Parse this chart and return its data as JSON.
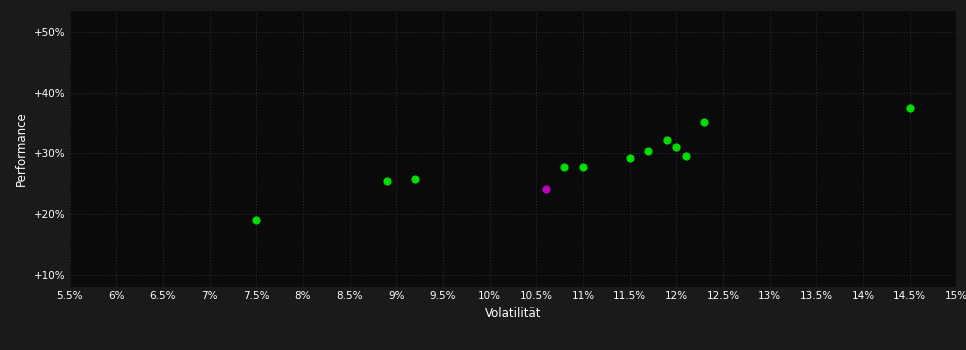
{
  "background_color": "#1a1a1a",
  "plot_bg_color": "#0a0a0a",
  "grid_color": "#2a2a2a",
  "text_color": "#ffffff",
  "xlabel": "Volatilität",
  "ylabel": "Performance",
  "xlim": [
    0.055,
    0.15
  ],
  "ylim": [
    0.08,
    0.535
  ],
  "xticks": [
    0.055,
    0.06,
    0.065,
    0.07,
    0.075,
    0.08,
    0.085,
    0.09,
    0.095,
    0.1,
    0.105,
    0.11,
    0.115,
    0.12,
    0.125,
    0.13,
    0.135,
    0.14,
    0.145,
    0.15
  ],
  "yticks": [
    0.1,
    0.2,
    0.3,
    0.4,
    0.5
  ],
  "green_points": [
    [
      0.075,
      0.19
    ],
    [
      0.089,
      0.255
    ],
    [
      0.092,
      0.258
    ],
    [
      0.108,
      0.278
    ],
    [
      0.11,
      0.278
    ],
    [
      0.115,
      0.293
    ],
    [
      0.117,
      0.303
    ],
    [
      0.119,
      0.322
    ],
    [
      0.121,
      0.295
    ],
    [
      0.12,
      0.31
    ],
    [
      0.123,
      0.352
    ],
    [
      0.145,
      0.374
    ]
  ],
  "magenta_points": [
    [
      0.106,
      0.242
    ]
  ],
  "point_size": 35,
  "font_size_ticks": 7.5,
  "font_size_labels": 8.5
}
